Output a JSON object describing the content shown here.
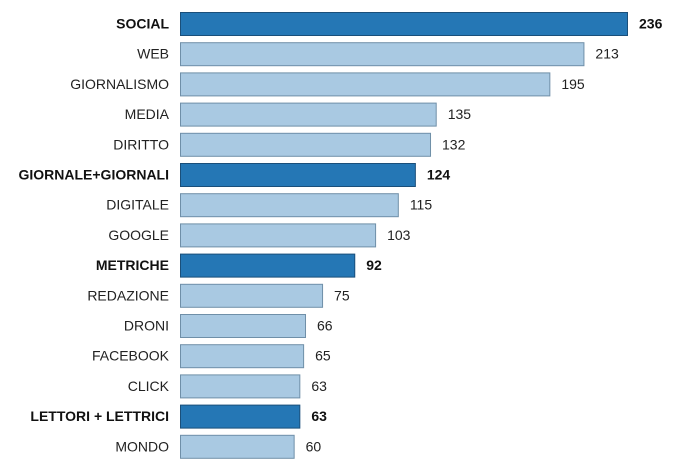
{
  "chart_data": {
    "type": "bar",
    "orientation": "horizontal",
    "title": "",
    "xlabel": "",
    "ylabel": "",
    "grid": false,
    "categories": [
      "SOCIAL",
      "WEB",
      "GIORNALISMO",
      "MEDIA",
      "DIRITTO",
      "GIORNALE+GIORNALI",
      "DIGITALE",
      "GOOGLE",
      "METRICHE",
      "REDAZIONE",
      "DRONI",
      "FACEBOOK",
      "CLICK",
      "LETTORI + LETTRICI",
      "MONDO"
    ],
    "values": [
      236,
      213,
      195,
      135,
      132,
      124,
      115,
      103,
      92,
      75,
      66,
      65,
      63,
      63,
      60
    ],
    "highlighted": [
      "SOCIAL",
      "GIORNALE+GIORNALI",
      "METRICHE",
      "LETTORI + LETTRICI"
    ],
    "xlim": [
      0,
      236
    ],
    "colors": {
      "highlight_fill": "#2577b5",
      "highlight_stroke": "#1a4f7a",
      "normal_fill": "#a9c9e2",
      "normal_stroke": "#6f8fa8"
    }
  }
}
